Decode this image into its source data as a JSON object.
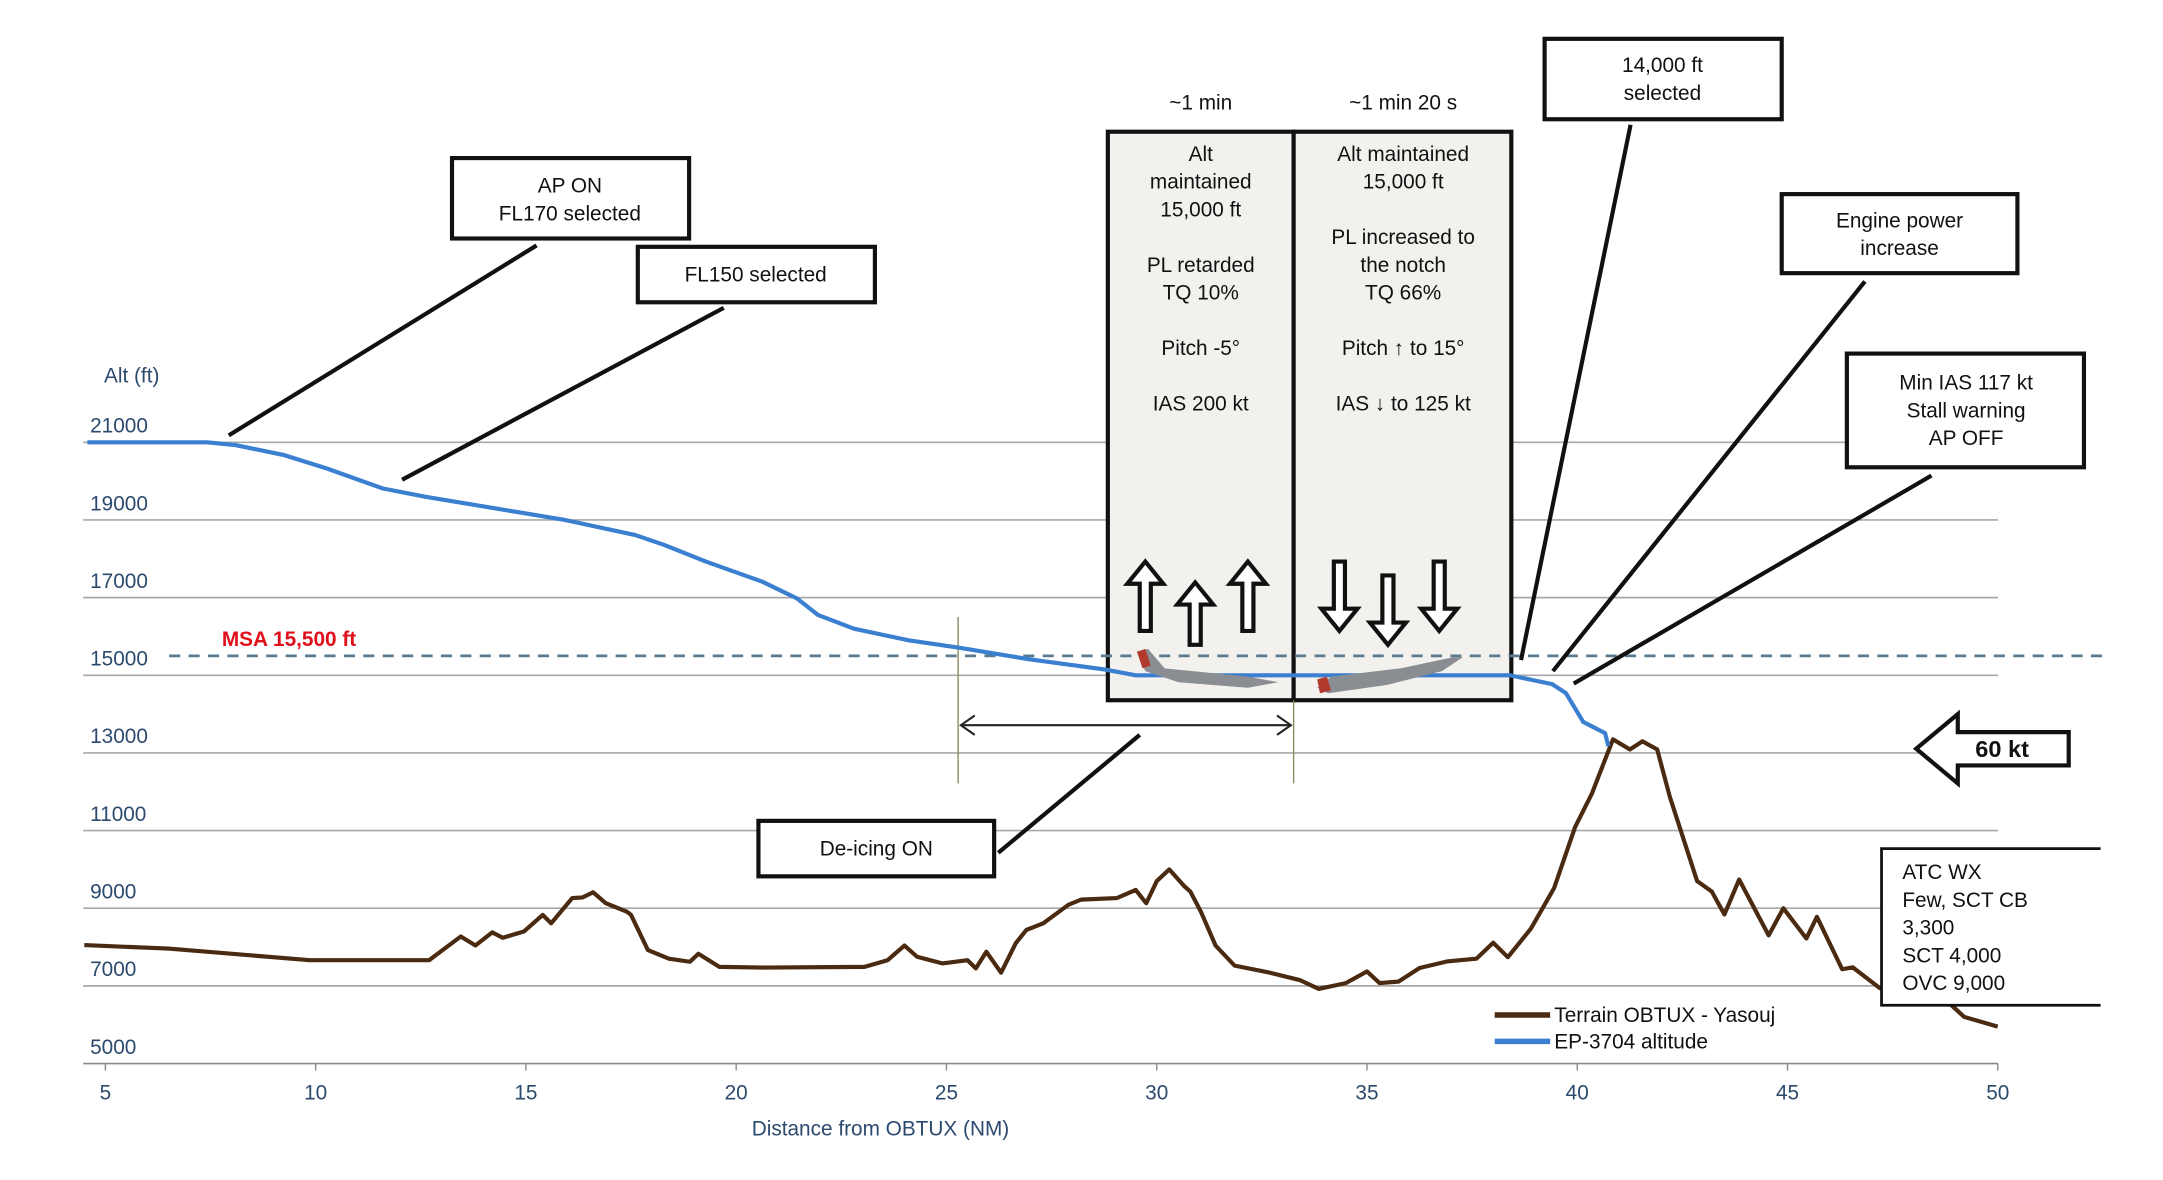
{
  "chart_data": {
    "type": "line",
    "xlabel": "Distance from OBTUX (NM)",
    "ylabel": "Alt (ft)",
    "xlim": [
      5,
      50
    ],
    "ylim": [
      5000,
      21000
    ],
    "x_ticks": [
      "5",
      "10",
      "15",
      "20",
      "25",
      "30",
      "35",
      "40",
      "45",
      "50"
    ],
    "y_ticks": [
      "21000",
      "19000",
      "17000",
      "15000",
      "13000",
      "11000",
      "9000",
      "7000",
      "5000"
    ],
    "grid": true,
    "legend_position": "bottom-right",
    "colors": {
      "terrain": "#4a2a10",
      "altitude": "#3a7fd0",
      "msa": "#5a7a90",
      "msa_label": "#e0101a",
      "axis_text": "#2c4a6e"
    },
    "reference_line": {
      "label": "MSA 15,500 ft",
      "value": 15500
    },
    "series": [
      {
        "name": "Terrain OBTUX - Yasouj",
        "points": [
          [
            4.5,
            8050
          ],
          [
            6.5,
            7960
          ],
          [
            9.86,
            7660
          ],
          [
            12.7,
            7660
          ],
          [
            13.45,
            8270
          ],
          [
            13.8,
            8040
          ],
          [
            14.2,
            8380
          ],
          [
            14.45,
            8240
          ],
          [
            14.95,
            8400
          ],
          [
            15.4,
            8830
          ],
          [
            15.6,
            8610
          ],
          [
            16.1,
            9260
          ],
          [
            16.35,
            9280
          ],
          [
            16.6,
            9410
          ],
          [
            16.9,
            9130
          ],
          [
            17.4,
            8910
          ],
          [
            17.5,
            8830
          ],
          [
            17.9,
            7920
          ],
          [
            18.4,
            7700
          ],
          [
            18.9,
            7620
          ],
          [
            19.1,
            7830
          ],
          [
            19.6,
            7490
          ],
          [
            20.7,
            7470
          ],
          [
            23.05,
            7490
          ],
          [
            23.6,
            7660
          ],
          [
            24.0,
            8040
          ],
          [
            24.3,
            7750
          ],
          [
            24.9,
            7580
          ],
          [
            25.5,
            7660
          ],
          [
            25.7,
            7450
          ],
          [
            25.95,
            7880
          ],
          [
            26.3,
            7340
          ],
          [
            26.65,
            8100
          ],
          [
            26.9,
            8440
          ],
          [
            27.3,
            8610
          ],
          [
            27.9,
            9090
          ],
          [
            28.2,
            9220
          ],
          [
            29.05,
            9260
          ],
          [
            29.5,
            9470
          ],
          [
            29.75,
            9130
          ],
          [
            30.0,
            9700
          ],
          [
            30.3,
            10000
          ],
          [
            30.65,
            9570
          ],
          [
            30.8,
            9430
          ],
          [
            31.05,
            8910
          ],
          [
            31.4,
            8040
          ],
          [
            31.85,
            7520
          ],
          [
            32.65,
            7350
          ],
          [
            33.4,
            7150
          ],
          [
            33.85,
            6920
          ],
          [
            34.5,
            7070
          ],
          [
            35.0,
            7370
          ],
          [
            35.3,
            7070
          ],
          [
            35.75,
            7110
          ],
          [
            36.25,
            7460
          ],
          [
            36.9,
            7630
          ],
          [
            37.6,
            7700
          ],
          [
            38.0,
            8110
          ],
          [
            38.35,
            7740
          ],
          [
            38.9,
            8480
          ],
          [
            39.45,
            9520
          ],
          [
            39.95,
            11090
          ],
          [
            40.35,
            11960
          ],
          [
            40.85,
            13350
          ],
          [
            41.25,
            13090
          ],
          [
            41.55,
            13300
          ],
          [
            41.9,
            13090
          ],
          [
            42.2,
            11870
          ],
          [
            42.85,
            9700
          ],
          [
            43.2,
            9430
          ],
          [
            43.5,
            8840
          ],
          [
            43.85,
            9740
          ],
          [
            44.55,
            8300
          ],
          [
            44.9,
            9000
          ],
          [
            45.45,
            8220
          ],
          [
            45.7,
            8780
          ],
          [
            46.3,
            7430
          ],
          [
            46.55,
            7480
          ],
          [
            47.2,
            6940
          ],
          [
            48.2,
            6800
          ],
          [
            48.9,
            6500
          ],
          [
            49.2,
            6200
          ],
          [
            50.0,
            5950
          ]
        ]
      },
      {
        "name": "EP-3704 altitude",
        "points": [
          [
            4.57,
            21000
          ],
          [
            7.42,
            21000
          ],
          [
            8.09,
            20930
          ],
          [
            9.25,
            20670
          ],
          [
            10.26,
            20330
          ],
          [
            11.6,
            19810
          ],
          [
            12.6,
            19600
          ],
          [
            14.26,
            19300
          ],
          [
            15.93,
            19000
          ],
          [
            17.6,
            18610
          ],
          [
            18.28,
            18360
          ],
          [
            19.28,
            17930
          ],
          [
            20.62,
            17410
          ],
          [
            21.45,
            16980
          ],
          [
            21.95,
            16550
          ],
          [
            22.8,
            16200
          ],
          [
            24.1,
            15900
          ],
          [
            25.3,
            15710
          ],
          [
            26.97,
            15410
          ],
          [
            28.76,
            15150
          ],
          [
            29.5,
            15000
          ],
          [
            38.4,
            15000
          ],
          [
            39.4,
            14770
          ],
          [
            39.73,
            14540
          ],
          [
            40.14,
            13800
          ],
          [
            40.66,
            13510
          ],
          [
            40.74,
            13170
          ]
        ]
      }
    ]
  },
  "annotations": {
    "ap_on": [
      "AP ON",
      "FL170 selected"
    ],
    "fl150": [
      "FL150 selected"
    ],
    "alt14000": [
      "14,000 ft",
      "selected"
    ],
    "engine_power": [
      "Engine power",
      "increase"
    ],
    "min_ias": [
      "Min IAS 117 kt",
      "Stall warning",
      "AP OFF"
    ],
    "deicing": [
      "De-icing ON"
    ],
    "phase1": {
      "duration": "~1 min",
      "lines": [
        "Alt",
        "maintained",
        "15,000 ft",
        "PL retarded",
        "TQ 10%",
        "Pitch -5°",
        "IAS 200 kt"
      ]
    },
    "phase2": {
      "duration": "~1 min 20 s",
      "lines": [
        "Alt maintained",
        "15,000 ft",
        "PL increased to",
        "the notch",
        "TQ 66%",
        "Pitch ↑ to 15°",
        "IAS ↓ to 125 kt"
      ]
    },
    "wind": "60 kt",
    "atc_wx": [
      "ATC WX",
      "Few, SCT CB",
      "3,300",
      "SCT 4,000",
      "OVC 9,000"
    ]
  }
}
